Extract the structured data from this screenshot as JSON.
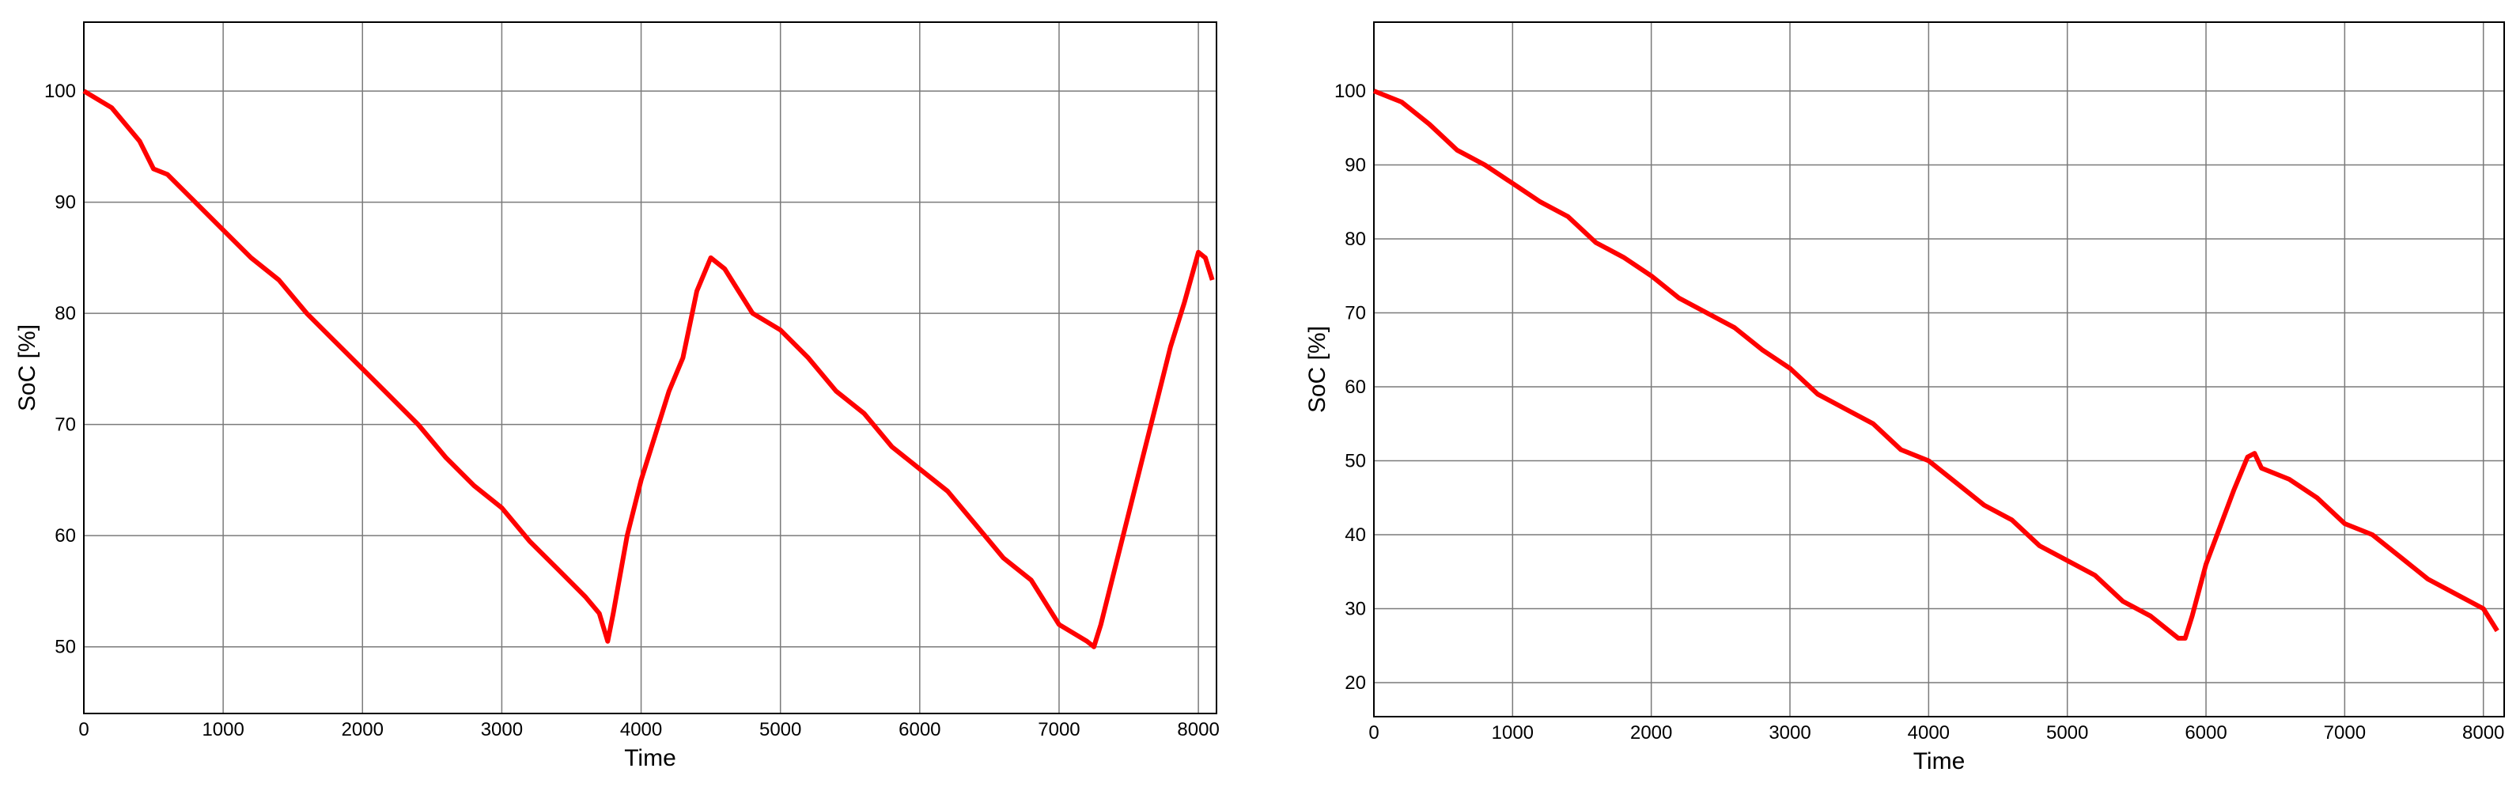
{
  "chart_data": [
    {
      "type": "line",
      "xlabel": "Time",
      "ylabel": "SoC [%]",
      "color": "#ff0000",
      "grid": true,
      "xlim": [
        0,
        8130
      ],
      "ylim": [
        44,
        106.2
      ],
      "xticks": [
        0,
        1000,
        2000,
        3000,
        4000,
        5000,
        6000,
        7000,
        8000
      ],
      "yticks": [
        50,
        60,
        70,
        80,
        90,
        100
      ],
      "x": [
        0,
        200,
        400,
        500,
        600,
        800,
        1000,
        1200,
        1400,
        1600,
        1800,
        2000,
        2200,
        2400,
        2600,
        2800,
        3000,
        3200,
        3400,
        3600,
        3700,
        3760,
        3800,
        3900,
        4000,
        4100,
        4200,
        4300,
        4400,
        4500,
        4600,
        4700,
        4800,
        5000,
        5200,
        5400,
        5600,
        5800,
        6000,
        6200,
        6400,
        6600,
        6800,
        7000,
        7200,
        7250,
        7300,
        7400,
        7500,
        7600,
        7700,
        7800,
        7900,
        8000,
        8050,
        8100
      ],
      "values": [
        100,
        98.5,
        95.5,
        93,
        92.5,
        90,
        87.5,
        85,
        83,
        80,
        77.5,
        75,
        72.5,
        70,
        67,
        64.5,
        62.5,
        59.5,
        57,
        54.5,
        53,
        50.5,
        53,
        60,
        65,
        69,
        73,
        76,
        82,
        85,
        84,
        82,
        80,
        78.5,
        76,
        73,
        71,
        68,
        66,
        64,
        61,
        58,
        56,
        52,
        50.5,
        50,
        52,
        57,
        62,
        67,
        72,
        77,
        81,
        85.5,
        85,
        83
      ]
    },
    {
      "type": "line",
      "xlabel": "Time",
      "ylabel": "SoC [%]",
      "color": "#ff0000",
      "grid": true,
      "xlim": [
        0,
        8150
      ],
      "ylim": [
        15.4,
        109.3
      ],
      "xticks": [
        0,
        1000,
        2000,
        3000,
        4000,
        5000,
        6000,
        7000,
        8000
      ],
      "yticks": [
        20,
        30,
        40,
        50,
        60,
        70,
        80,
        90,
        100
      ],
      "x": [
        0,
        200,
        400,
        600,
        800,
        1000,
        1200,
        1400,
        1600,
        1800,
        2000,
        2200,
        2400,
        2600,
        2800,
        3000,
        3200,
        3400,
        3600,
        3800,
        4000,
        4200,
        4400,
        4600,
        4800,
        5000,
        5200,
        5400,
        5600,
        5800,
        5850,
        5900,
        6000,
        6100,
        6200,
        6300,
        6350,
        6400,
        6600,
        6800,
        7000,
        7200,
        7400,
        7600,
        7800,
        8000,
        8100
      ],
      "values": [
        100,
        98.5,
        95.5,
        92,
        90,
        87.5,
        85,
        83,
        79.5,
        77.5,
        75,
        72,
        70,
        68,
        65,
        62.5,
        59,
        57,
        55,
        51.5,
        50,
        47,
        44,
        42,
        38.5,
        36.5,
        34.5,
        31,
        29,
        26,
        26,
        29,
        36,
        41,
        46,
        50.5,
        51,
        49,
        47.5,
        45,
        41.5,
        40,
        37,
        34,
        32,
        30,
        27
      ]
    }
  ]
}
